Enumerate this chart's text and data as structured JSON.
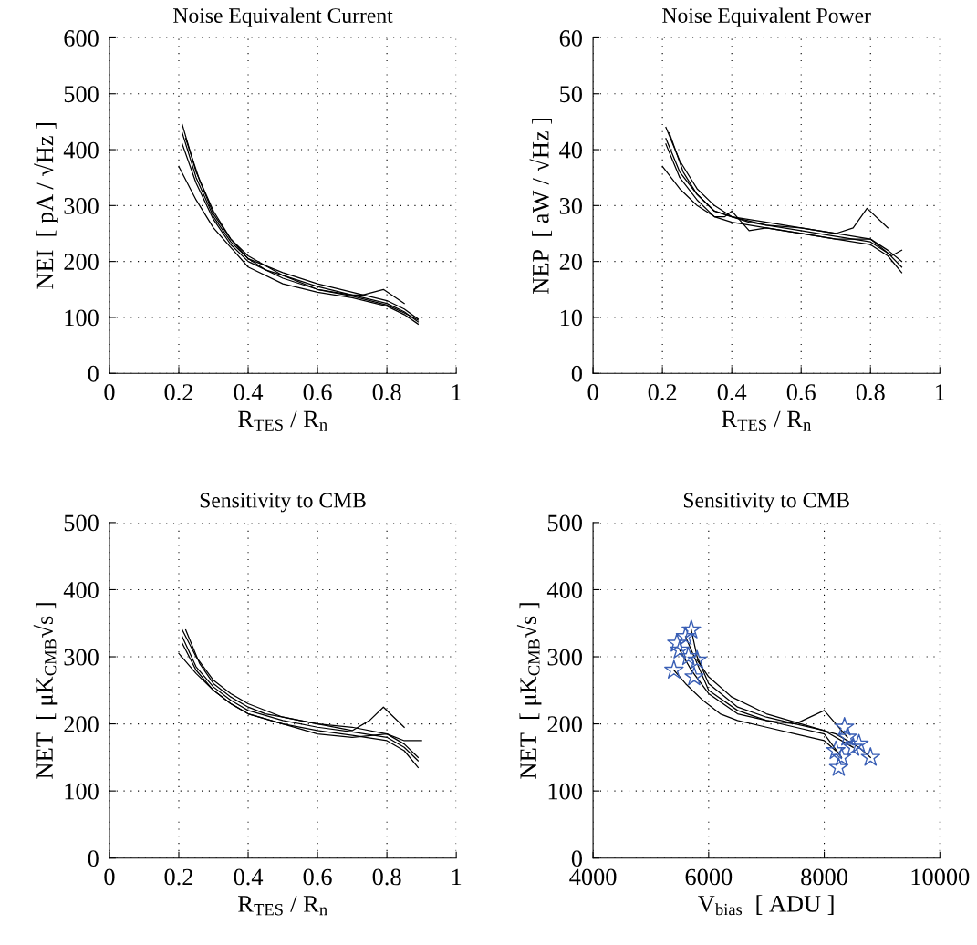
{
  "chart_data": [
    {
      "type": "line",
      "title": "Noise Equivalent Current",
      "xlabel": "R$_{TES}$ / R$_{n}$",
      "ylabel": "NEI  [ pA / √Hz ]",
      "xlim": [
        0,
        1
      ],
      "xticks": [
        0,
        0.2,
        0.4,
        0.6,
        0.8,
        1
      ],
      "ylim": [
        0,
        600
      ],
      "yticks": [
        0,
        100,
        200,
        300,
        400,
        500,
        600
      ],
      "grid": true,
      "marker": "none",
      "line_style": "solid",
      "series": [
        {
          "color": "#000000",
          "x": [
            0.21,
            0.25,
            0.3,
            0.35,
            0.4,
            0.5,
            0.6,
            0.7,
            0.8,
            0.85,
            0.89
          ],
          "values": [
            445,
            360,
            290,
            240,
            210,
            175,
            155,
            140,
            125,
            110,
            92
          ]
        },
        {
          "color": "#000000",
          "x": [
            0.21,
            0.25,
            0.3,
            0.35,
            0.4,
            0.5,
            0.6,
            0.7,
            0.8,
            0.85,
            0.89
          ],
          "values": [
            410,
            340,
            275,
            230,
            200,
            170,
            150,
            138,
            122,
            108,
            95
          ]
        },
        {
          "color": "#000000",
          "x": [
            0.2,
            0.25,
            0.3,
            0.35,
            0.4,
            0.5,
            0.6,
            0.7,
            0.8,
            0.85,
            0.89
          ],
          "values": [
            370,
            310,
            260,
            225,
            190,
            160,
            145,
            135,
            120,
            105,
            88
          ]
        },
        {
          "color": "#000000",
          "x": [
            0.22,
            0.26,
            0.3,
            0.35,
            0.4,
            0.45,
            0.5,
            0.6,
            0.7,
            0.73,
            0.79,
            0.85
          ],
          "values": [
            420,
            345,
            285,
            240,
            205,
            185,
            175,
            150,
            140,
            140,
            150,
            125
          ]
        },
        {
          "color": "#000000",
          "x": [
            0.21,
            0.25,
            0.3,
            0.35,
            0.4,
            0.5,
            0.6,
            0.7,
            0.8,
            0.85,
            0.89
          ],
          "values": [
            430,
            350,
            280,
            235,
            205,
            180,
            160,
            145,
            130,
            115,
            97
          ]
        }
      ]
    },
    {
      "type": "line",
      "title": "Noise Equivalent Power",
      "xlabel": "R$_{TES}$ / R$_{n}$",
      "ylabel": "NEP  [ aW / √Hz ]",
      "xlim": [
        0,
        1
      ],
      "xticks": [
        0,
        0.2,
        0.4,
        0.6,
        0.8,
        1
      ],
      "ylim": [
        0,
        60
      ],
      "yticks": [
        0,
        10,
        20,
        30,
        40,
        50,
        60
      ],
      "grid": true,
      "marker": "none",
      "line_style": "solid",
      "series": [
        {
          "color": "#000000",
          "x": [
            0.21,
            0.25,
            0.3,
            0.35,
            0.4,
            0.5,
            0.6,
            0.7,
            0.8,
            0.85,
            0.89
          ],
          "values": [
            44,
            38,
            33,
            30,
            28,
            27,
            26,
            25,
            24,
            22,
            20
          ]
        },
        {
          "color": "#000000",
          "x": [
            0.21,
            0.25,
            0.3,
            0.35,
            0.4,
            0.5,
            0.6,
            0.7,
            0.8,
            0.85,
            0.89
          ],
          "values": [
            42,
            36,
            32,
            29,
            28,
            26.5,
            25.5,
            24.5,
            23.5,
            21.5,
            19
          ]
        },
        {
          "color": "#000000",
          "x": [
            0.2,
            0.25,
            0.3,
            0.35,
            0.4,
            0.5,
            0.6,
            0.7,
            0.8,
            0.85,
            0.89
          ],
          "values": [
            37,
            33,
            30,
            28,
            27,
            26,
            25,
            24,
            23,
            21,
            18
          ]
        },
        {
          "color": "#000000",
          "x": [
            0.22,
            0.26,
            0.3,
            0.35,
            0.4,
            0.45,
            0.5,
            0.6,
            0.7,
            0.75,
            0.79,
            0.85
          ],
          "values": [
            43,
            36,
            32,
            29,
            28,
            27,
            26.5,
            26,
            25,
            26,
            29.5,
            26
          ]
        },
        {
          "color": "#000000",
          "x": [
            0.21,
            0.25,
            0.3,
            0.35,
            0.38,
            0.4,
            0.45,
            0.5,
            0.6,
            0.7,
            0.8,
            0.86,
            0.89
          ],
          "values": [
            41,
            35,
            31,
            28,
            28,
            29,
            25.5,
            26,
            25,
            24,
            24,
            21,
            22
          ]
        }
      ]
    },
    {
      "type": "line",
      "title": "Sensitivity to CMB",
      "xlabel": "R$_{TES}$ / R$_{n}$",
      "ylabel": "NET  [ μK$_{CMB}$√s ]",
      "xlim": [
        0,
        1
      ],
      "xticks": [
        0,
        0.2,
        0.4,
        0.6,
        0.8,
        1
      ],
      "ylim": [
        0,
        500
      ],
      "yticks": [
        0,
        100,
        200,
        300,
        400,
        500
      ],
      "grid": true,
      "marker": "none",
      "line_style": "solid",
      "series": [
        {
          "color": "#000000",
          "x": [
            0.21,
            0.25,
            0.3,
            0.35,
            0.4,
            0.5,
            0.6,
            0.7,
            0.8,
            0.85,
            0.89
          ],
          "values": [
            340,
            300,
            265,
            245,
            230,
            210,
            200,
            195,
            185,
            170,
            150
          ]
        },
        {
          "color": "#000000",
          "x": [
            0.21,
            0.25,
            0.3,
            0.35,
            0.4,
            0.5,
            0.6,
            0.7,
            0.8,
            0.85,
            0.89
          ],
          "values": [
            330,
            285,
            255,
            235,
            220,
            205,
            195,
            188,
            180,
            165,
            145
          ]
        },
        {
          "color": "#000000",
          "x": [
            0.2,
            0.25,
            0.3,
            0.35,
            0.4,
            0.5,
            0.6,
            0.7,
            0.8,
            0.85,
            0.89
          ],
          "values": [
            305,
            275,
            250,
            230,
            215,
            200,
            190,
            183,
            175,
            160,
            135
          ]
        },
        {
          "color": "#000000",
          "x": [
            0.22,
            0.26,
            0.3,
            0.35,
            0.4,
            0.45,
            0.5,
            0.6,
            0.7,
            0.75,
            0.79,
            0.85
          ],
          "values": [
            340,
            290,
            260,
            240,
            225,
            215,
            210,
            200,
            190,
            205,
            225,
            195
          ]
        },
        {
          "color": "#000000",
          "x": [
            0.21,
            0.25,
            0.3,
            0.35,
            0.4,
            0.5,
            0.6,
            0.7,
            0.8,
            0.85,
            0.9
          ],
          "values": [
            320,
            280,
            250,
            230,
            215,
            200,
            185,
            180,
            185,
            175,
            175
          ]
        }
      ]
    },
    {
      "type": "line",
      "title": "Sensitivity to CMB",
      "xlabel": "V$_{bias}$  [ ADU ]",
      "ylabel": "NET  [ μK$_{CMB}$√s ]",
      "xlim": [
        4000,
        10000
      ],
      "xticks": [
        4000,
        6000,
        8000,
        10000
      ],
      "ylim": [
        0,
        500
      ],
      "yticks": [
        0,
        100,
        200,
        300,
        400,
        500
      ],
      "grid": true,
      "marker": "none",
      "line_style": "solid",
      "series": [
        {
          "color": "#000000",
          "x": [
            5700,
            5800,
            6000,
            6500,
            7000,
            7500,
            8000,
            8500
          ],
          "values": [
            340,
            300,
            260,
            225,
            210,
            200,
            190,
            165
          ]
        },
        {
          "color": "#000000",
          "x": [
            5500,
            5700,
            6000,
            6500,
            7000,
            7500,
            8000,
            8300
          ],
          "values": [
            310,
            280,
            245,
            215,
            205,
            195,
            185,
            150
          ]
        },
        {
          "color": "#000000",
          "x": [
            5400,
            5600,
            5900,
            6200,
            6500,
            7000,
            7500,
            8000,
            8200
          ],
          "values": [
            280,
            260,
            235,
            215,
            205,
            195,
            185,
            175,
            160
          ]
        },
        {
          "color": "#000000",
          "x": [
            5600,
            5800,
            6000,
            6500,
            7000,
            7500,
            8000,
            8200,
            8400
          ],
          "values": [
            330,
            290,
            250,
            220,
            205,
            200,
            220,
            200,
            180
          ]
        },
        {
          "color": "#000000",
          "x": [
            5800,
            6000,
            6400,
            7000,
            7600,
            8200,
            8600,
            8800
          ],
          "values": [
            295,
            270,
            240,
            215,
            200,
            185,
            165,
            150
          ]
        },
        {
          "type": "scatter",
          "marker": "star",
          "color": "#3a5fb5",
          "x": [
            5400,
            5500,
            5600,
            5700,
            5800,
            5450,
            5650,
            5750,
            8200,
            8300,
            8400,
            8500,
            8800,
            8600,
            8250,
            8350
          ],
          "values": [
            280,
            310,
            330,
            340,
            295,
            320,
            300,
            270,
            160,
            150,
            180,
            165,
            150,
            170,
            135,
            195
          ]
        }
      ]
    }
  ]
}
